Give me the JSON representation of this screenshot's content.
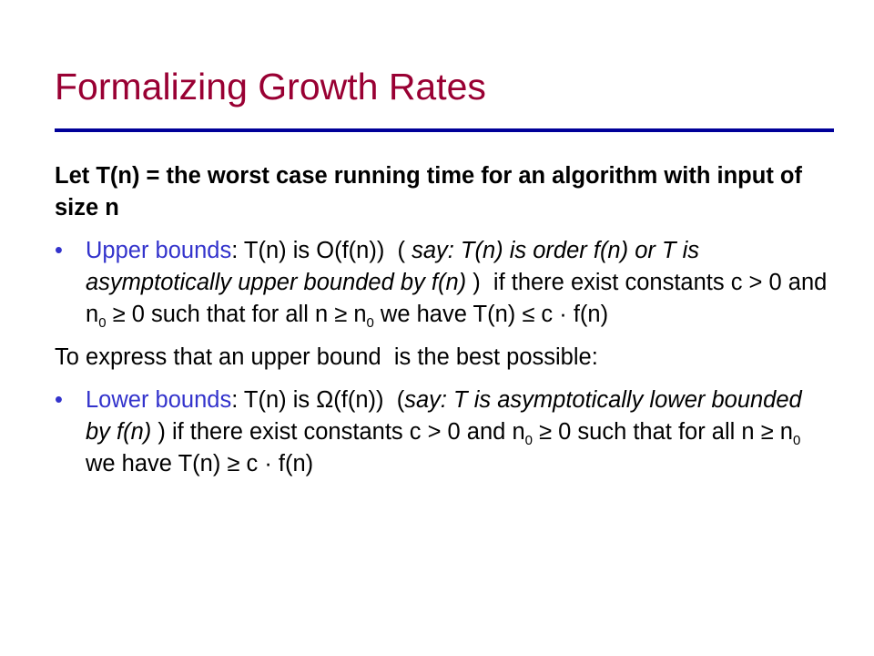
{
  "title": "Formalizing Growth Rates",
  "intro": "Let T(n) = the worst case running time for an algorithm with input of size n",
  "upper_bound": {
    "parts": [
      "Upper bounds",
      ": T(n) is O(f(n))  ( ",
      "say: T(n) is order f(n) or T is asymptotically upper bounded by f(n)",
      " )  if there exist constants c > 0 and n",
      "0",
      " ≥ 0 such that for all n ≥ n",
      "0",
      " we have T(n) ≤ c · f(n)"
    ]
  },
  "transition": "To express that an upper bound  is the best possible:",
  "lower_bound": {
    "parts": [
      "Lower bounds",
      ": T(n) is Ω(f(n))  (",
      "say: T is asymptotically lower bounded by f(n)",
      " ) if there exist constants c > 0 and n",
      "0",
      " ≥ 0 such that for all n ≥ n",
      "0",
      " we have T(n) ≥ c · f(n)"
    ]
  }
}
